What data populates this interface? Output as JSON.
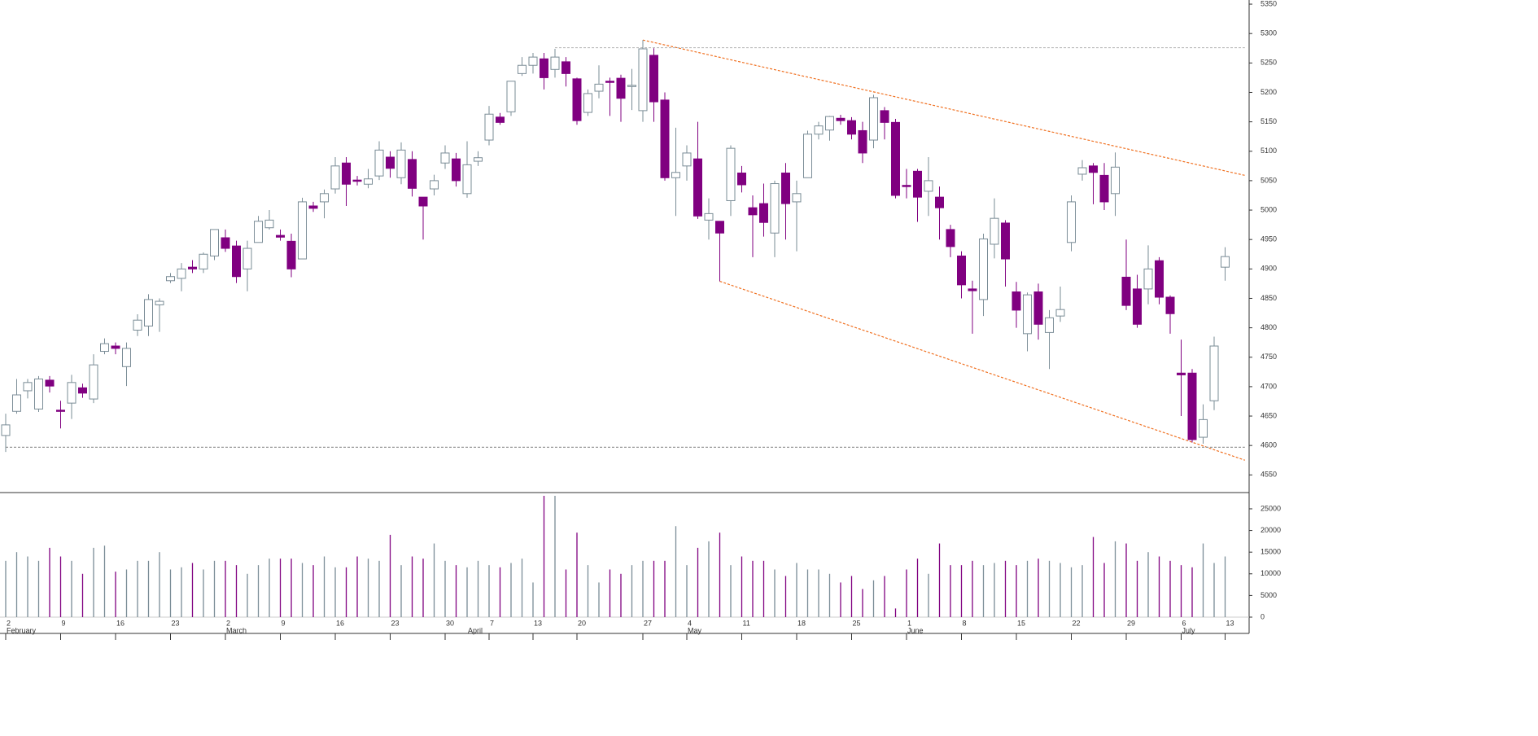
{
  "chart_data": {
    "type": "candlestick",
    "categories": [
      "2",
      null,
      null,
      null,
      null,
      "9",
      null,
      null,
      null,
      null,
      "16",
      null,
      null,
      null,
      null,
      "23",
      null,
      null,
      null,
      null,
      "2",
      null,
      null,
      null,
      null,
      "9",
      null,
      null,
      null,
      null,
      "16",
      null,
      null,
      null,
      null,
      "23",
      null,
      null,
      null,
      null,
      "30",
      null,
      null,
      null,
      "7",
      null,
      null,
      null,
      "13",
      null,
      null,
      null,
      "20",
      null,
      null,
      null,
      null,
      null,
      "27",
      null,
      null,
      null,
      "4",
      null,
      null,
      null,
      null,
      "11",
      null,
      null,
      null,
      null,
      "18",
      null,
      null,
      null,
      null,
      "25",
      null,
      null,
      null,
      null,
      "1",
      null,
      null,
      null,
      null,
      "8",
      null,
      null,
      null,
      null,
      "15",
      null,
      null,
      null,
      null,
      "22",
      null,
      null,
      null,
      null,
      "29",
      null,
      null,
      null,
      null,
      "6",
      null,
      null,
      null,
      "13"
    ],
    "months": [
      "February",
      null,
      null,
      null,
      null,
      null,
      null,
      null,
      null,
      null,
      null,
      null,
      null,
      null,
      null,
      null,
      null,
      null,
      null,
      null,
      "March",
      null,
      null,
      null,
      null,
      null,
      null,
      null,
      null,
      null,
      null,
      null,
      null,
      null,
      null,
      null,
      null,
      null,
      null,
      null,
      null,
      null,
      "April",
      null,
      null,
      null,
      null,
      null,
      null,
      null,
      null,
      null,
      null,
      null,
      null,
      null,
      null,
      null,
      null,
      null,
      null,
      null,
      "May",
      null,
      null,
      null,
      null,
      null,
      null,
      null,
      null,
      null,
      null,
      null,
      null,
      null,
      null,
      null,
      null,
      null,
      null,
      null,
      "June",
      null,
      null,
      null,
      null,
      null,
      null,
      null,
      null,
      null,
      null,
      null,
      null,
      null,
      null,
      null,
      null,
      null,
      null,
      null,
      null,
      null,
      null,
      null,
      null,
      "July",
      null,
      null,
      null,
      null
    ],
    "open": [
      4617,
      4658,
      4693,
      4662,
      4711,
      4660,
      4672,
      4698,
      4679,
      4760,
      4769,
      4734,
      4796,
      4803,
      4839,
      4880,
      4884,
      4903,
      4900,
      4922,
      4953,
      4939,
      4900,
      4945,
      4970,
      4957,
      4947,
      4917,
      5007,
      5014,
      5036,
      5080,
      5051,
      5044,
      5058,
      5090,
      5055,
      5086,
      5022,
      5036,
      5080,
      5087,
      5028,
      5083,
      5119,
      5158,
      5167,
      5232,
      5246,
      5257,
      5239,
      5252,
      5223,
      5166,
      5202,
      5219,
      5224,
      5210,
      5169,
      5263,
      5187,
      5055,
      5075,
      5087,
      4983,
      4981,
      5016,
      5063,
      5004,
      5011,
      4961,
      5063,
      5014,
      5055,
      5129,
      5136,
      5156,
      5152,
      5135,
      5119,
      5169,
      5149,
      5042,
      5066,
      5032,
      5022,
      4967,
      4922,
      4866,
      4848,
      4942,
      4978,
      4861,
      4790,
      4861,
      4792,
      4820,
      4945,
      5061,
      5075,
      5059,
      5028,
      4886,
      4866,
      4866,
      4914,
      4852,
      4723,
      4723,
      4614,
      4676,
      4903
    ],
    "high": [
      4654,
      4713,
      4713,
      4718,
      4718,
      4676,
      4720,
      4705,
      4755,
      4782,
      4775,
      4775,
      4823,
      4857,
      4850,
      4893,
      4910,
      4915,
      4928,
      4967,
      4967,
      4948,
      4948,
      4990,
      5000,
      4967,
      4960,
      5021,
      5014,
      5035,
      5090,
      5090,
      5058,
      5070,
      5117,
      5100,
      5115,
      5100,
      5022,
      5060,
      5110,
      5097,
      5117,
      5100,
      5177,
      5165,
      5219,
      5260,
      5267,
      5267,
      5274,
      5260,
      5225,
      5205,
      5246,
      5225,
      5230,
      5240,
      5289,
      5275,
      5200,
      5140,
      5110,
      5150,
      5020,
      4981,
      5110,
      5075,
      5025,
      5045,
      5050,
      5080,
      5050,
      5135,
      5150,
      5160,
      5162,
      5158,
      5150,
      5196,
      5175,
      5155,
      5070,
      5070,
      5090,
      5040,
      4975,
      4930,
      4880,
      4960,
      5020,
      4983,
      4878,
      4860,
      4875,
      4830,
      4870,
      5025,
      5085,
      5080,
      5080,
      5098,
      4950,
      4890,
      4940,
      4920,
      4855,
      4780,
      4730,
      4670,
      4785,
      4937
    ],
    "low": [
      4589,
      4654,
      4680,
      4657,
      4690,
      4629,
      4645,
      4681,
      4672,
      4755,
      4755,
      4701,
      4786,
      4786,
      4793,
      4876,
      4862,
      4893,
      4893,
      4915,
      4929,
      4876,
      4862,
      4945,
      4967,
      4948,
      4886,
      4917,
      4997,
      4986,
      5028,
      5007,
      5042,
      5037,
      5051,
      5055,
      5044,
      5023,
      4950,
      5025,
      5070,
      5040,
      5021,
      5075,
      5110,
      5145,
      5160,
      5228,
      5232,
      5205,
      5225,
      5210,
      5145,
      5160,
      5190,
      5160,
      5150,
      5170,
      5150,
      5150,
      5050,
      4990,
      5050,
      4985,
      4950,
      4879,
      4990,
      5030,
      4920,
      4955,
      4920,
      4950,
      4930,
      5055,
      5120,
      5118,
      5145,
      5120,
      5080,
      5105,
      5120,
      5020,
      5020,
      4980,
      4990,
      4950,
      4920,
      4850,
      4790,
      4820,
      4918,
      4870,
      4800,
      4760,
      4780,
      4730,
      4810,
      4930,
      5050,
      5010,
      5000,
      4990,
      4830,
      4800,
      4840,
      4840,
      4790,
      4650,
      4605,
      4603,
      4660,
      4880
    ],
    "close": [
      4635,
      4686,
      4707,
      4713,
      4701,
      4659,
      4707,
      4689,
      4737,
      4773,
      4765,
      4765,
      4813,
      4848,
      4845,
      4887,
      4900,
      4900,
      4925,
      4967,
      4935,
      4887,
      4935,
      4981,
      4983,
      4954,
      4900,
      5014,
      5003,
      5028,
      5075,
      5044,
      5049,
      5053,
      5102,
      5071,
      5102,
      5037,
      5007,
      5050,
      5097,
      5050,
      5077,
      5089,
      5163,
      5149,
      5219,
      5246,
      5260,
      5225,
      5260,
      5232,
      5152,
      5198,
      5214,
      5217,
      5190,
      5212,
      5274,
      5184,
      5055,
      5064,
      5097,
      4990,
      4994,
      4961,
      5105,
      5043,
      4992,
      4979,
      5045,
      5011,
      5028,
      5129,
      5143,
      5159,
      5152,
      5129,
      5097,
      5191,
      5149,
      5025,
      5040,
      5022,
      5050,
      5004,
      4938,
      4873,
      4863,
      4951,
      4986,
      4917,
      4830,
      4856,
      4806,
      4817,
      4831,
      5014,
      5072,
      5064,
      5014,
      5073,
      4838,
      4806,
      4900,
      4852,
      4824,
      4720,
      4610,
      4644,
      4769,
      4921
    ],
    "volume": [
      13000,
      15000,
      14000,
      13000,
      16000,
      14000,
      13000,
      10000,
      16000,
      16500,
      10500,
      11000,
      13000,
      13000,
      15000,
      11000,
      11500,
      12500,
      11000,
      13000,
      13000,
      12000,
      10000,
      12000,
      13500,
      13500,
      13500,
      12500,
      12000,
      14000,
      11500,
      11500,
      14000,
      13500,
      13000,
      19000,
      12000,
      14000,
      13500,
      17000,
      13000,
      12000,
      11500,
      13000,
      12000,
      11500,
      12500,
      13500,
      8000,
      28000,
      28000,
      11000,
      19500,
      12000,
      8000,
      11000,
      10000,
      12000,
      13000,
      13000,
      13000,
      21000,
      12000,
      16000,
      17500,
      19500,
      12000,
      14000,
      13000,
      13000,
      11000,
      9500,
      12500,
      11000,
      11000,
      10000,
      8000,
      9500,
      6500,
      8500,
      9500,
      2000,
      11000,
      13500,
      10000,
      17000,
      12000,
      12000,
      13000,
      12000,
      12500,
      13000,
      12000,
      13000,
      13500,
      13000,
      12500,
      11500,
      12000,
      18500,
      12500,
      17500,
      17000,
      13000,
      15000,
      14000,
      13000,
      12000,
      11500,
      17000,
      12500,
      14000
    ],
    "up_color": "#7a8c96",
    "down_color": "#800080",
    "ylim": [
      4520,
      5357
    ],
    "yticks": [
      4550,
      4600,
      4650,
      4700,
      4750,
      4800,
      4850,
      4900,
      4950,
      5000,
      5050,
      5100,
      5150,
      5200,
      5250,
      5300,
      5350
    ],
    "volume_ylim": [
      0,
      28000
    ],
    "volume_yticks": [
      0,
      5000,
      10000,
      15000,
      20000,
      25000
    ],
    "trendlines": [
      {
        "x": [
          58,
          112.8
        ],
        "y": [
          5289,
          5059
        ],
        "color": "#f07020"
      },
      {
        "x": [
          65,
          112.8
        ],
        "y": [
          4879,
          4575
        ],
        "color": "#f07020"
      },
      {
        "x": [
          0,
          112.8
        ],
        "y": [
          4597,
          4597
        ],
        "color": "#999999"
      },
      {
        "x": [
          50,
          112.8
        ],
        "y": [
          5276,
          5276
        ],
        "color": "#bbbbbb"
      }
    ]
  }
}
